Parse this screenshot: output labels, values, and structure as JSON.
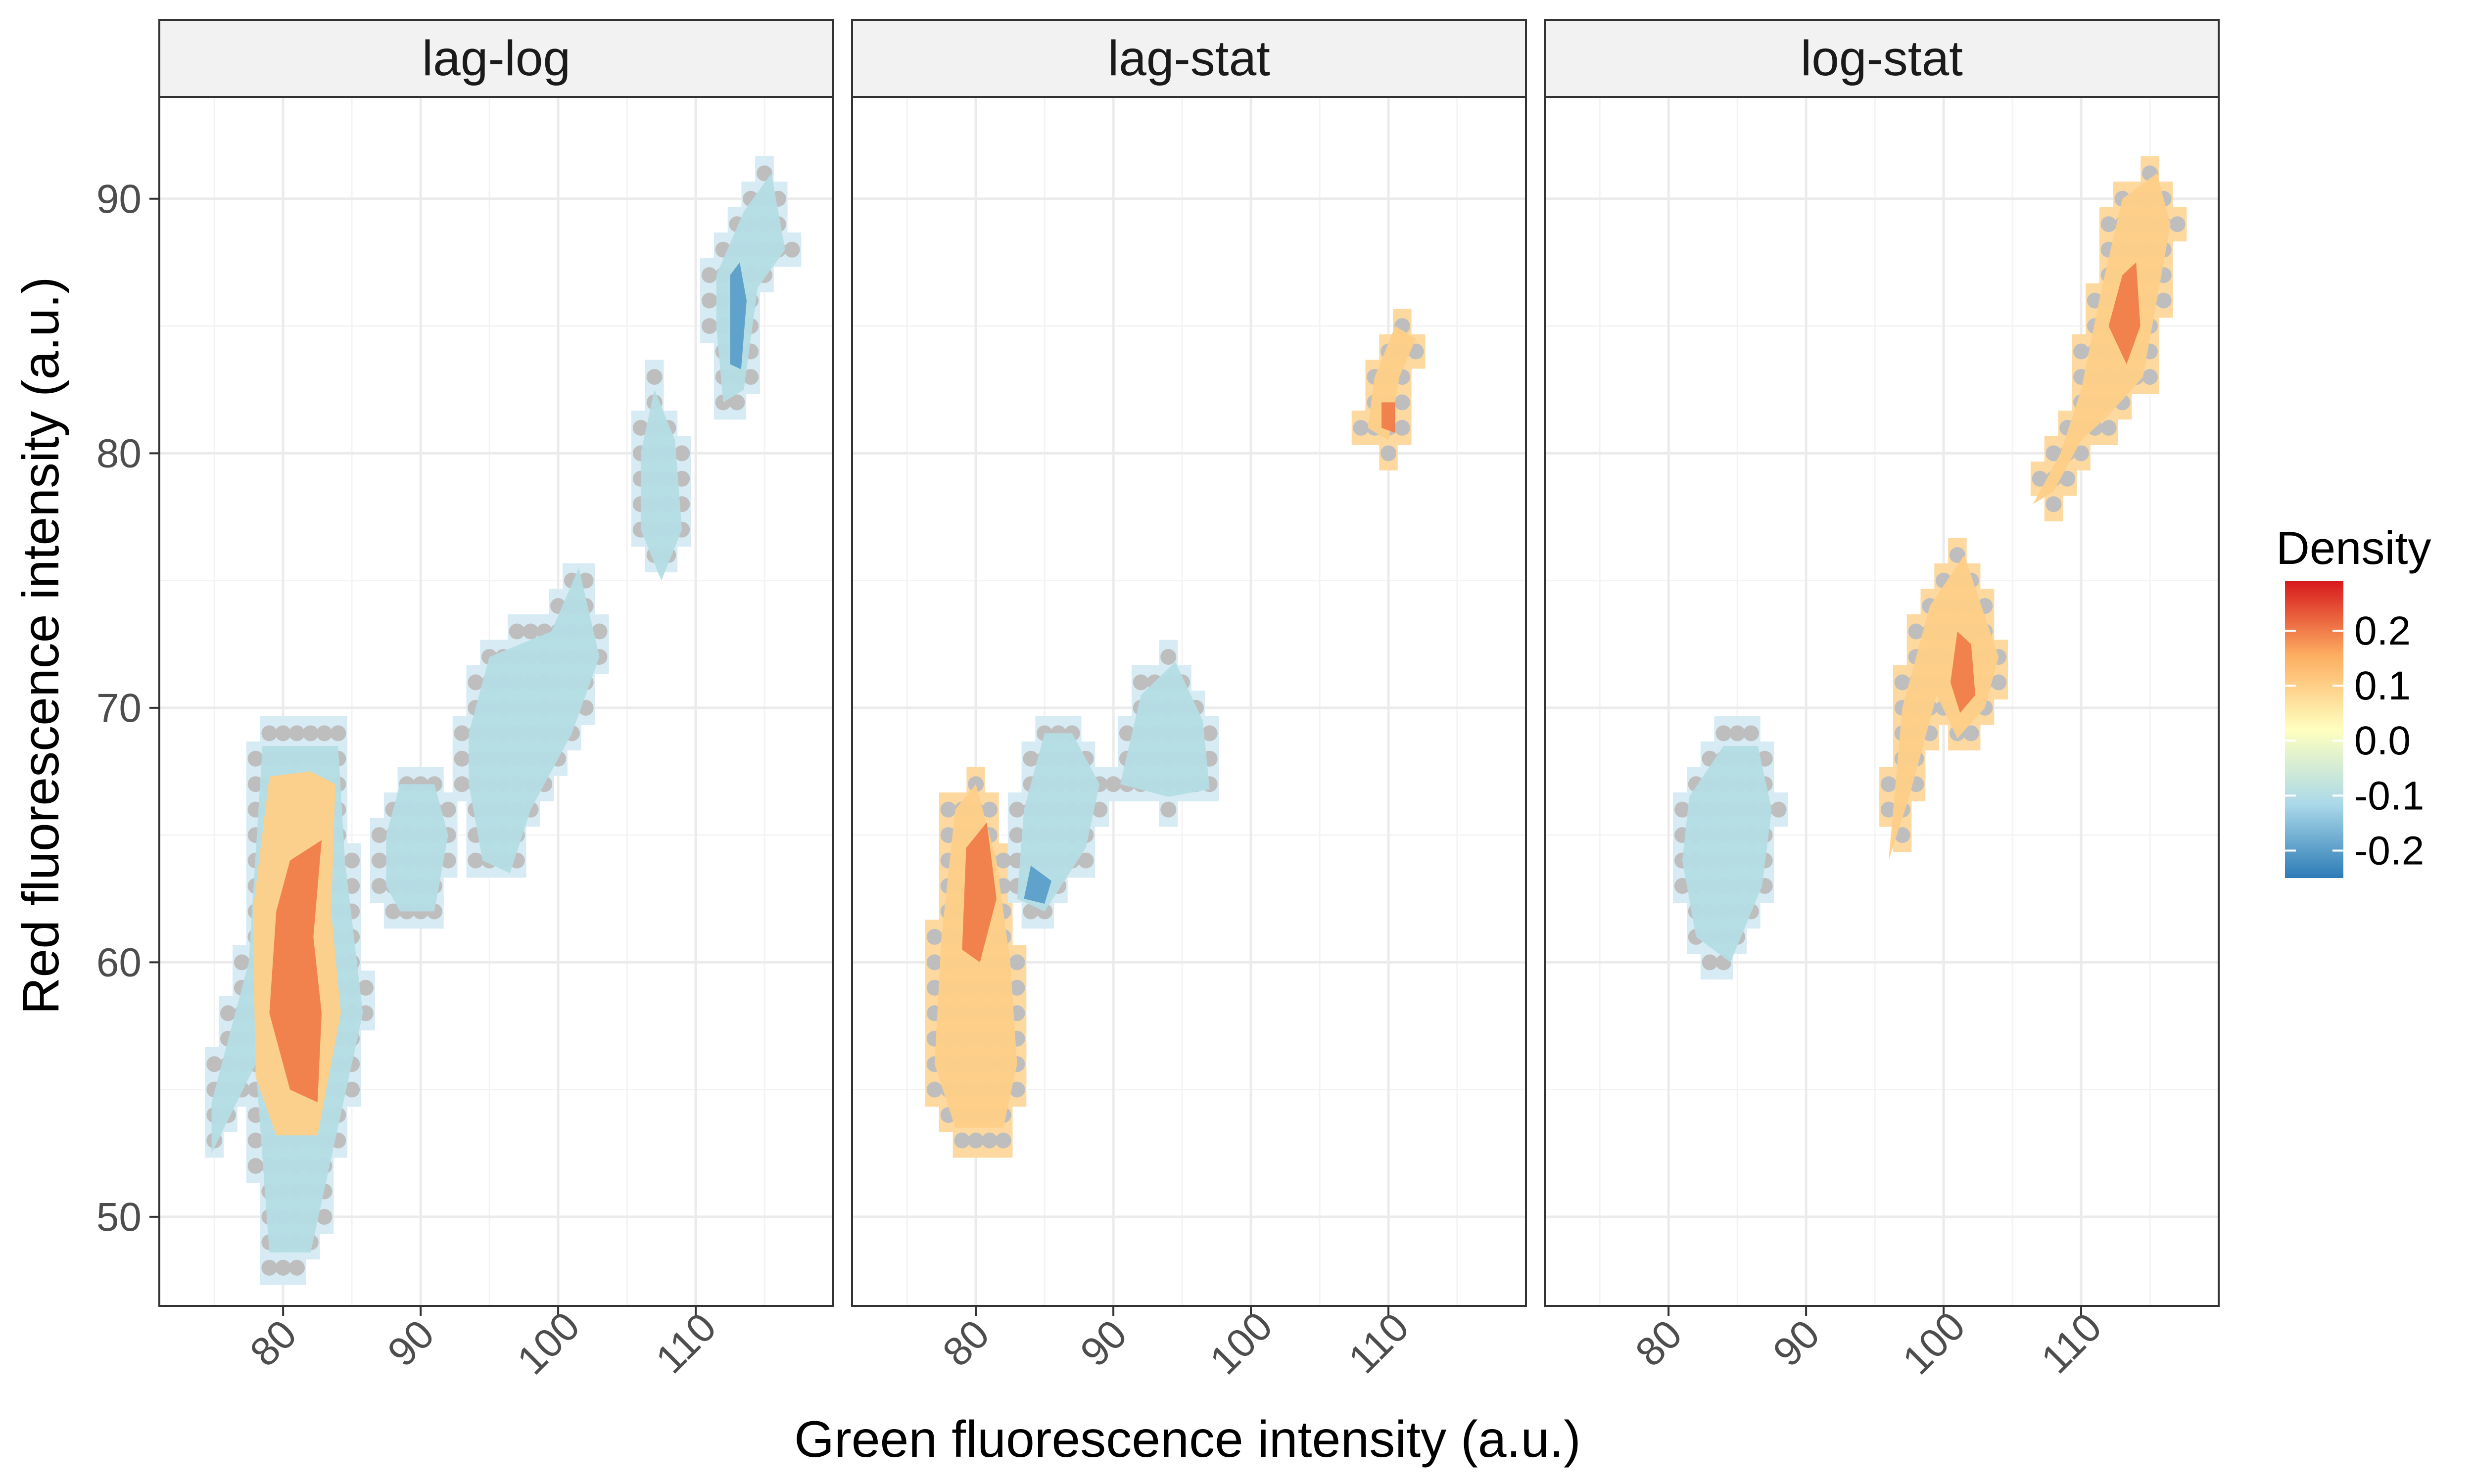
{
  "chart_data": {
    "type": "heatmap",
    "xlabel": "Green fluorescence intensity (a.u.)",
    "ylabel": "Red fluorescence intensity (a.u.)",
    "xlim": [
      71,
      120
    ],
    "ylim": [
      46.5,
      94
    ],
    "x_ticks": [
      80,
      90,
      100,
      110
    ],
    "y_ticks": [
      50,
      60,
      70,
      80,
      90
    ],
    "grid": true,
    "legend": {
      "title": "Density",
      "placement": "right",
      "breaks": [
        0.2,
        0.1,
        0.0,
        -0.1,
        -0.2
      ],
      "labels": [
        "0.2",
        "0.1",
        "0.0",
        "-0.1",
        "-0.2"
      ],
      "limits": [
        -0.25,
        0.29
      ],
      "colors": [
        "#2c7bb6",
        "#abd9e9",
        "#ffffbf",
        "#fdae61",
        "#d7191c"
      ]
    },
    "panels": [
      {
        "facet": "lag-log",
        "regions": [
          {
            "level": -0.1,
            "points": [
              [
                74.8,
                52.5
              ],
              [
                78,
                56
              ],
              [
                79,
                48.6
              ],
              [
                82,
                48.6
              ],
              [
                85.8,
                58
              ],
              [
                84.5,
                64
              ],
              [
                84,
                68.5
              ],
              [
                78.5,
                68.5
              ],
              [
                77.5,
                60
              ],
              [
                74.8,
                54.5
              ]
            ]
          },
          {
            "level": 0.1,
            "points": [
              [
                78,
                55.5
              ],
              [
                79.5,
                53.2
              ],
              [
                82.5,
                53.2
              ],
              [
                84.2,
                58
              ],
              [
                83.5,
                62
              ],
              [
                83.8,
                67
              ],
              [
                82,
                67.5
              ],
              [
                79,
                67.3
              ],
              [
                77.8,
                62
              ]
            ]
          },
          {
            "level": 0.2,
            "points": [
              [
                79,
                58
              ],
              [
                80.5,
                55
              ],
              [
                82.5,
                54.5
              ],
              [
                82.8,
                58
              ],
              [
                82.2,
                61
              ],
              [
                82.8,
                64.8
              ],
              [
                80.5,
                64
              ],
              [
                79.5,
                62
              ]
            ]
          },
          {
            "level": -0.1,
            "points": [
              [
                87.5,
                63
              ],
              [
                88.5,
                62
              ],
              [
                91,
                62
              ],
              [
                92,
                65
              ],
              [
                91,
                67
              ],
              [
                88.5,
                67
              ],
              [
                87.5,
                65
              ]
            ]
          },
          {
            "level": -0.1,
            "points": [
              [
                93.5,
                69
              ],
              [
                95,
                72
              ],
              [
                99.5,
                73
              ],
              [
                101.5,
                75.5
              ],
              [
                103,
                72
              ],
              [
                101,
                69
              ],
              [
                98,
                66
              ],
              [
                96.5,
                63.5
              ],
              [
                94.5,
                64
              ],
              [
                93.5,
                67
              ]
            ]
          },
          {
            "level": -0.1,
            "points": [
              [
                106,
                77
              ],
              [
                107.5,
                75
              ],
              [
                109,
                77
              ],
              [
                108.5,
                80.5
              ],
              [
                107,
                82.5
              ],
              [
                106,
                80
              ]
            ]
          },
          {
            "level": -0.1,
            "points": [
              [
                111.5,
                87
              ],
              [
                113.5,
                89.5
              ],
              [
                115.5,
                91
              ],
              [
                116.5,
                88
              ],
              [
                114.5,
                86.5
              ],
              [
                113.5,
                82.5
              ],
              [
                112,
                82
              ],
              [
                111.5,
                85
              ]
            ]
          },
          {
            "level": -0.2,
            "points": [
              [
                112.5,
                83.5
              ],
              [
                113.3,
                83.3
              ],
              [
                113.7,
                86
              ],
              [
                113.2,
                87.5
              ],
              [
                112.5,
                87
              ]
            ]
          }
        ]
      },
      {
        "facet": "lag-stat",
        "regions": [
          {
            "level": 0.1,
            "points": [
              [
                77,
                56
              ],
              [
                78.5,
                53.5
              ],
              [
                82,
                53.5
              ],
              [
                83,
                56
              ],
              [
                82.5,
                60
              ],
              [
                81.5,
                64
              ],
              [
                80,
                67
              ],
              [
                78.5,
                66
              ],
              [
                77.5,
                61
              ]
            ]
          },
          {
            "level": 0.2,
            "points": [
              [
                79,
                60.5
              ],
              [
                80.3,
                60
              ],
              [
                81.5,
                62.5
              ],
              [
                80.8,
                65.5
              ],
              [
                79.3,
                64.5
              ]
            ]
          },
          {
            "level": -0.1,
            "points": [
              [
                83,
                62.5
              ],
              [
                85,
                62
              ],
              [
                88,
                64.5
              ],
              [
                89,
                67
              ],
              [
                87,
                69
              ],
              [
                85,
                69
              ],
              [
                83.5,
                66
              ]
            ]
          },
          {
            "level": -0.2,
            "points": [
              [
                83.5,
                62.5
              ],
              [
                85,
                62.3
              ],
              [
                85.5,
                63.2
              ],
              [
                84,
                63.8
              ]
            ]
          },
          {
            "level": -0.1,
            "points": [
              [
                90.5,
                67
              ],
              [
                92,
                70.5
              ],
              [
                94.5,
                71.8
              ],
              [
                96.5,
                69.5
              ],
              [
                97,
                66.8
              ],
              [
                94,
                66.5
              ]
            ]
          },
          {
            "level": 0.1,
            "points": [
              [
                108.5,
                81
              ],
              [
                110,
                80.5
              ],
              [
                110.8,
                83
              ],
              [
                112,
                84.5
              ],
              [
                110.5,
                85
              ],
              [
                109,
                83
              ]
            ]
          },
          {
            "level": 0.2,
            "points": [
              [
                109.5,
                81
              ],
              [
                110.5,
                80.8
              ],
              [
                110.5,
                82
              ],
              [
                109.5,
                82
              ]
            ]
          }
        ]
      },
      {
        "facet": "log-stat",
        "regions": [
          {
            "level": -0.1,
            "points": [
              [
                81,
                64
              ],
              [
                82,
                61
              ],
              [
                84.5,
                60
              ],
              [
                86.8,
                63
              ],
              [
                87.5,
                66
              ],
              [
                86.5,
                68.5
              ],
              [
                84,
                68.5
              ],
              [
                81.5,
                66.5
              ]
            ]
          },
          {
            "level": 0.1,
            "points": [
              [
                96,
                64
              ],
              [
                97,
                70
              ],
              [
                99,
                74
              ],
              [
                101.5,
                76
              ],
              [
                104,
                72
              ],
              [
                103,
                70
              ],
              [
                101,
                68.8
              ],
              [
                99.5,
                70.5
              ],
              [
                97.5,
                66.5
              ]
            ]
          },
          {
            "level": 0.2,
            "points": [
              [
                100.5,
                71
              ],
              [
                101.2,
                69.8
              ],
              [
                102.3,
                70.5
              ],
              [
                102,
                72.5
              ],
              [
                101,
                73
              ]
            ]
          },
          {
            "level": 0.1,
            "points": [
              [
                106.5,
                78
              ],
              [
                108.5,
                80
              ],
              [
                110,
                82.5
              ],
              [
                111.5,
                86.5
              ],
              [
                113,
                90
              ],
              [
                115.5,
                91
              ],
              [
                116.5,
                89
              ],
              [
                115.5,
                86
              ],
              [
                114.5,
                83
              ],
              [
                112,
                81.5
              ],
              [
                110,
                80.5
              ],
              [
                108,
                78.5
              ]
            ]
          },
          {
            "level": 0.2,
            "points": [
              [
                112,
                85
              ],
              [
                113.3,
                83.5
              ],
              [
                114.3,
                85
              ],
              [
                114,
                87.5
              ],
              [
                113,
                87
              ]
            ]
          }
        ]
      }
    ],
    "points_color": "#bebebe"
  }
}
